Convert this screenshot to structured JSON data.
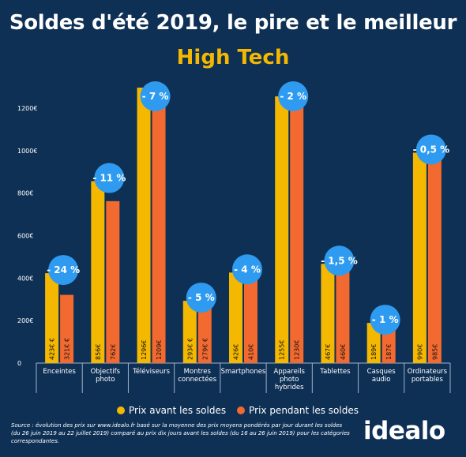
{
  "header": {
    "title": "Soldes d'été 2019, le pire et le meilleur",
    "subtitle": "High Tech"
  },
  "legend": {
    "before_label": "Prix avant les soldes",
    "during_label": "Prix pendant les soldes"
  },
  "source": "Source : évolution des prix sur www.idealo.fr basé sur la moyenne des prix moyens pondérés par jour durant les soldes (du 26 juin 2019 au 22 juillet 2019) comparé au prix dix jours avant les soldes (du 16 au 26 juin 2019) pour les catégories correspondantes.",
  "logo": "idealo",
  "colors": {
    "background": "#0f3055",
    "before": "#f5b800",
    "during": "#f26a30",
    "badge": "#2f9bf0"
  },
  "chart_data": {
    "type": "bar",
    "title": "Soldes d'été 2019, le pire et le meilleur",
    "subtitle": "High Tech",
    "ylim": [
      0,
      1300
    ],
    "yticks": [
      0,
      200,
      400,
      600,
      800,
      1000,
      1200
    ],
    "ytick_labels": [
      "0",
      "200€",
      "400€",
      "600€",
      "800€",
      "1000€",
      "1200€"
    ],
    "grid": false,
    "legend_position": "bottom",
    "categories": [
      [
        "Enceintes"
      ],
      [
        "Objectifs",
        "photo"
      ],
      [
        "Téléviseurs"
      ],
      [
        "Montres",
        "connectées"
      ],
      [
        "Smartphones"
      ],
      [
        "Appareils",
        "photo",
        "hybrides"
      ],
      [
        "Tablettes"
      ],
      [
        "Casques",
        "audio"
      ],
      [
        "Ordinateurs",
        "portables"
      ]
    ],
    "series": [
      {
        "name": "Prix avant les soldes",
        "values": [
          423,
          856,
          1296,
          293,
          426,
          1255,
          467,
          189,
          990
        ],
        "labels": [
          "423€ €",
          "856€",
          "1296€",
          "293€ €",
          "426€",
          "1255€",
          "467€",
          "189€",
          "990€"
        ]
      },
      {
        "name": "Prix pendant les soldes",
        "values": [
          321,
          762,
          1209,
          279,
          410,
          1230,
          460,
          187,
          985
        ],
        "labels": [
          "321€ €",
          "762€",
          "1209€",
          "279€ €",
          "410€",
          "1230€",
          "460€",
          "187€",
          "985€"
        ]
      }
    ],
    "annotations": [
      "- 24 %",
      "- 11 %",
      "- 7 %",
      "- 5 %",
      "- 4 %",
      "- 2 %",
      "- 1,5 %",
      "- 1 %",
      "- 0,5 %"
    ]
  }
}
